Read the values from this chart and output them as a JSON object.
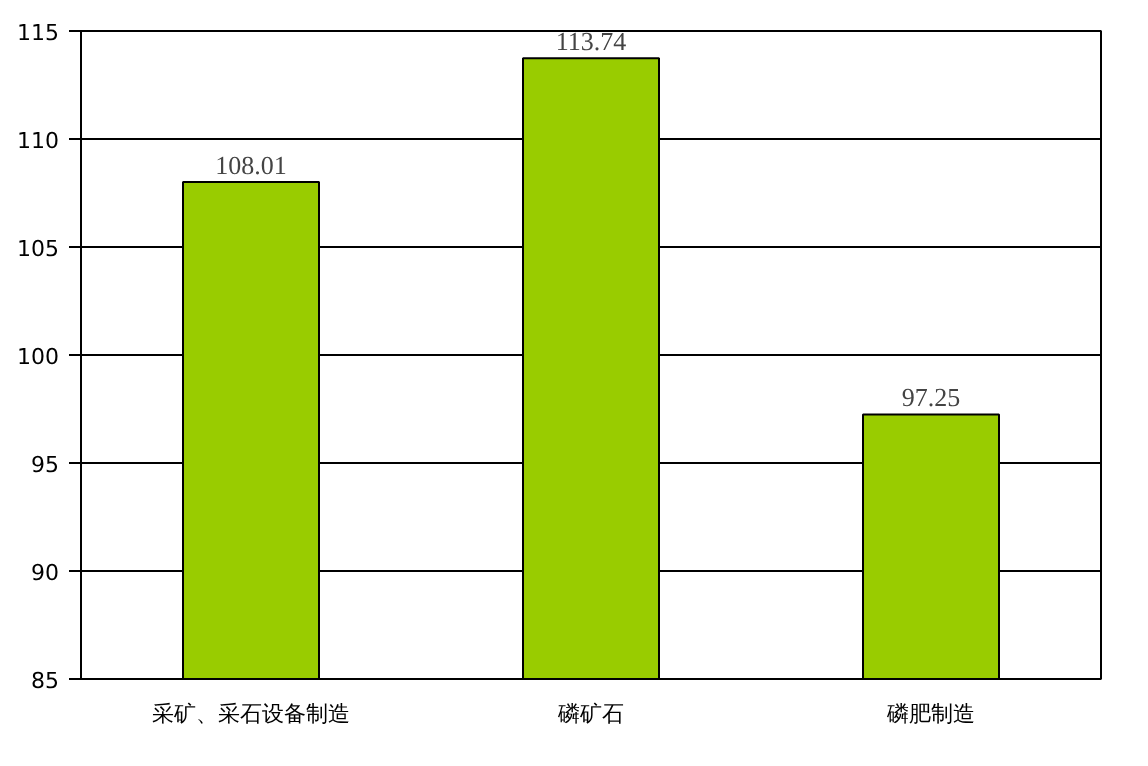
{
  "chart_data": {
    "type": "bar",
    "categories": [
      "采矿、采石设备制造",
      "磷矿石",
      "磷肥制造"
    ],
    "values": [
      108.01,
      113.74,
      97.25
    ],
    "color": "#99cc00",
    "data_labels": true,
    "ylim": [
      85,
      115
    ],
    "yticks": [
      85,
      90,
      95,
      100,
      105,
      110,
      115
    ],
    "grid": "y"
  }
}
